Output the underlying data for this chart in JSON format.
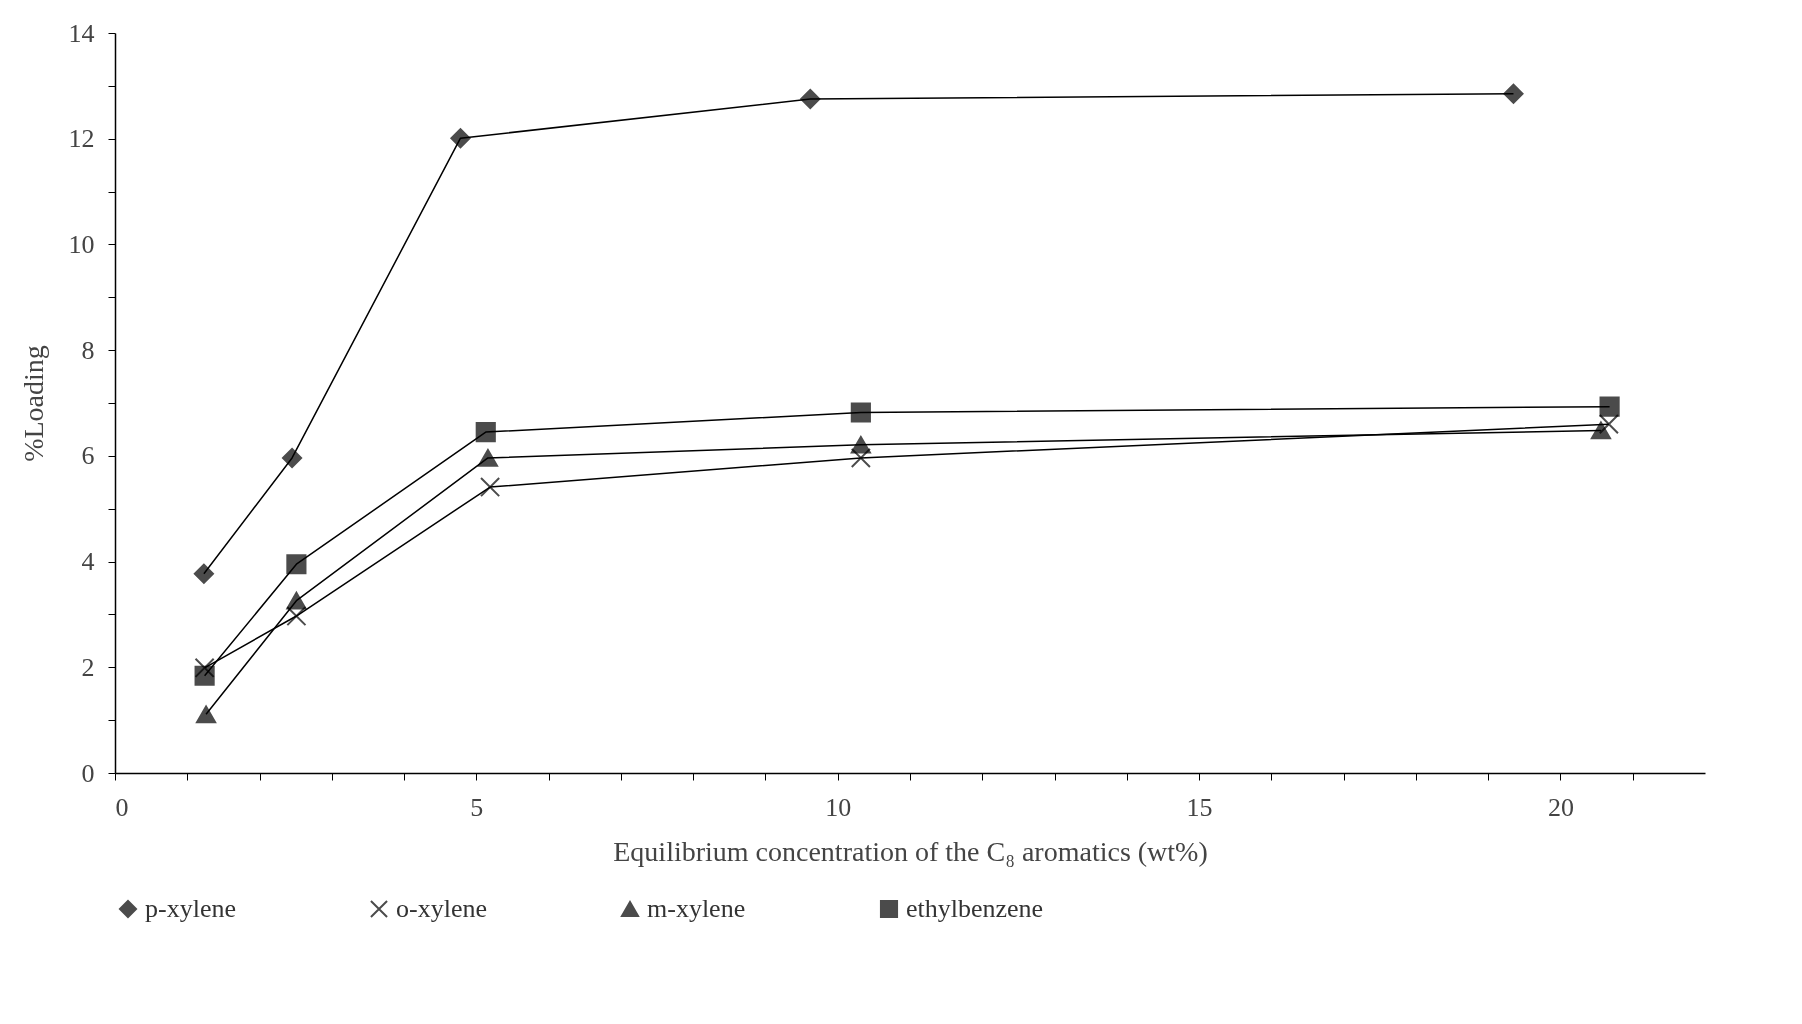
{
  "chart_data": {
    "type": "line",
    "xlabel": "Equilibrium concentration of the C₈ aromatics (wt%)",
    "ylabel": "%Loading",
    "xlim": [
      0,
      22
    ],
    "xticks": [
      0,
      {
        "value": 1,
        "label": null
      },
      {
        "value": 2,
        "label": null
      },
      {
        "value": 3,
        "label": null
      },
      {
        "value": 4,
        "label": null
      },
      5,
      {
        "value": 6,
        "label": null
      },
      {
        "value": 7,
        "label": null
      },
      {
        "value": 8,
        "label": null
      },
      {
        "value": 9,
        "label": null
      },
      10,
      {
        "value": 11,
        "label": null
      },
      {
        "value": 12,
        "label": null
      },
      {
        "value": 13,
        "label": null
      },
      {
        "value": 14,
        "label": null
      },
      15,
      {
        "value": 16,
        "label": null
      },
      {
        "value": 17,
        "label": null
      },
      {
        "value": 18,
        "label": null
      },
      {
        "value": 19,
        "label": null
      },
      20,
      {
        "value": 21,
        "label": null
      }
    ],
    "ylim": [
      0,
      14
    ],
    "yticks": [
      0,
      {
        "value": 1,
        "label": null
      },
      2,
      {
        "value": 3,
        "label": null
      },
      4,
      {
        "value": 5,
        "label": null
      },
      6,
      {
        "value": 7,
        "label": null
      },
      8,
      {
        "value": 9,
        "label": null
      },
      10,
      {
        "value": 11,
        "label": null
      },
      12,
      {
        "value": 13,
        "label": null
      },
      14
    ],
    "grid": false,
    "legend": "bottom",
    "line_style": "solid",
    "series": [
      {
        "name": "p-xylene",
        "color": "#000000",
        "marker": "diamond",
        "x": [
          1.23,
          2.45,
          4.78,
          9.62,
          19.35
        ],
        "values": [
          3.77,
          5.96,
          12.01,
          12.75,
          12.85
        ]
      },
      {
        "name": "o-xylene",
        "color": "#000000",
        "marker": "cross",
        "x": [
          1.24,
          2.51,
          5.19,
          10.32,
          20.67
        ],
        "values": [
          1.99,
          2.97,
          5.41,
          5.96,
          6.6
        ]
      },
      {
        "name": "m-xylene",
        "color": "#000000",
        "marker": "triangle",
        "x": [
          1.26,
          2.51,
          5.16,
          10.32,
          20.56
        ],
        "values": [
          1.11,
          3.26,
          5.96,
          6.21,
          6.48
        ]
      },
      {
        "name": "ethylbenzene",
        "color": "#000000",
        "marker": "square",
        "x": [
          1.24,
          2.51,
          5.13,
          10.32,
          20.68
        ],
        "values": [
          1.84,
          3.95,
          6.45,
          6.82,
          6.93
        ]
      }
    ]
  }
}
